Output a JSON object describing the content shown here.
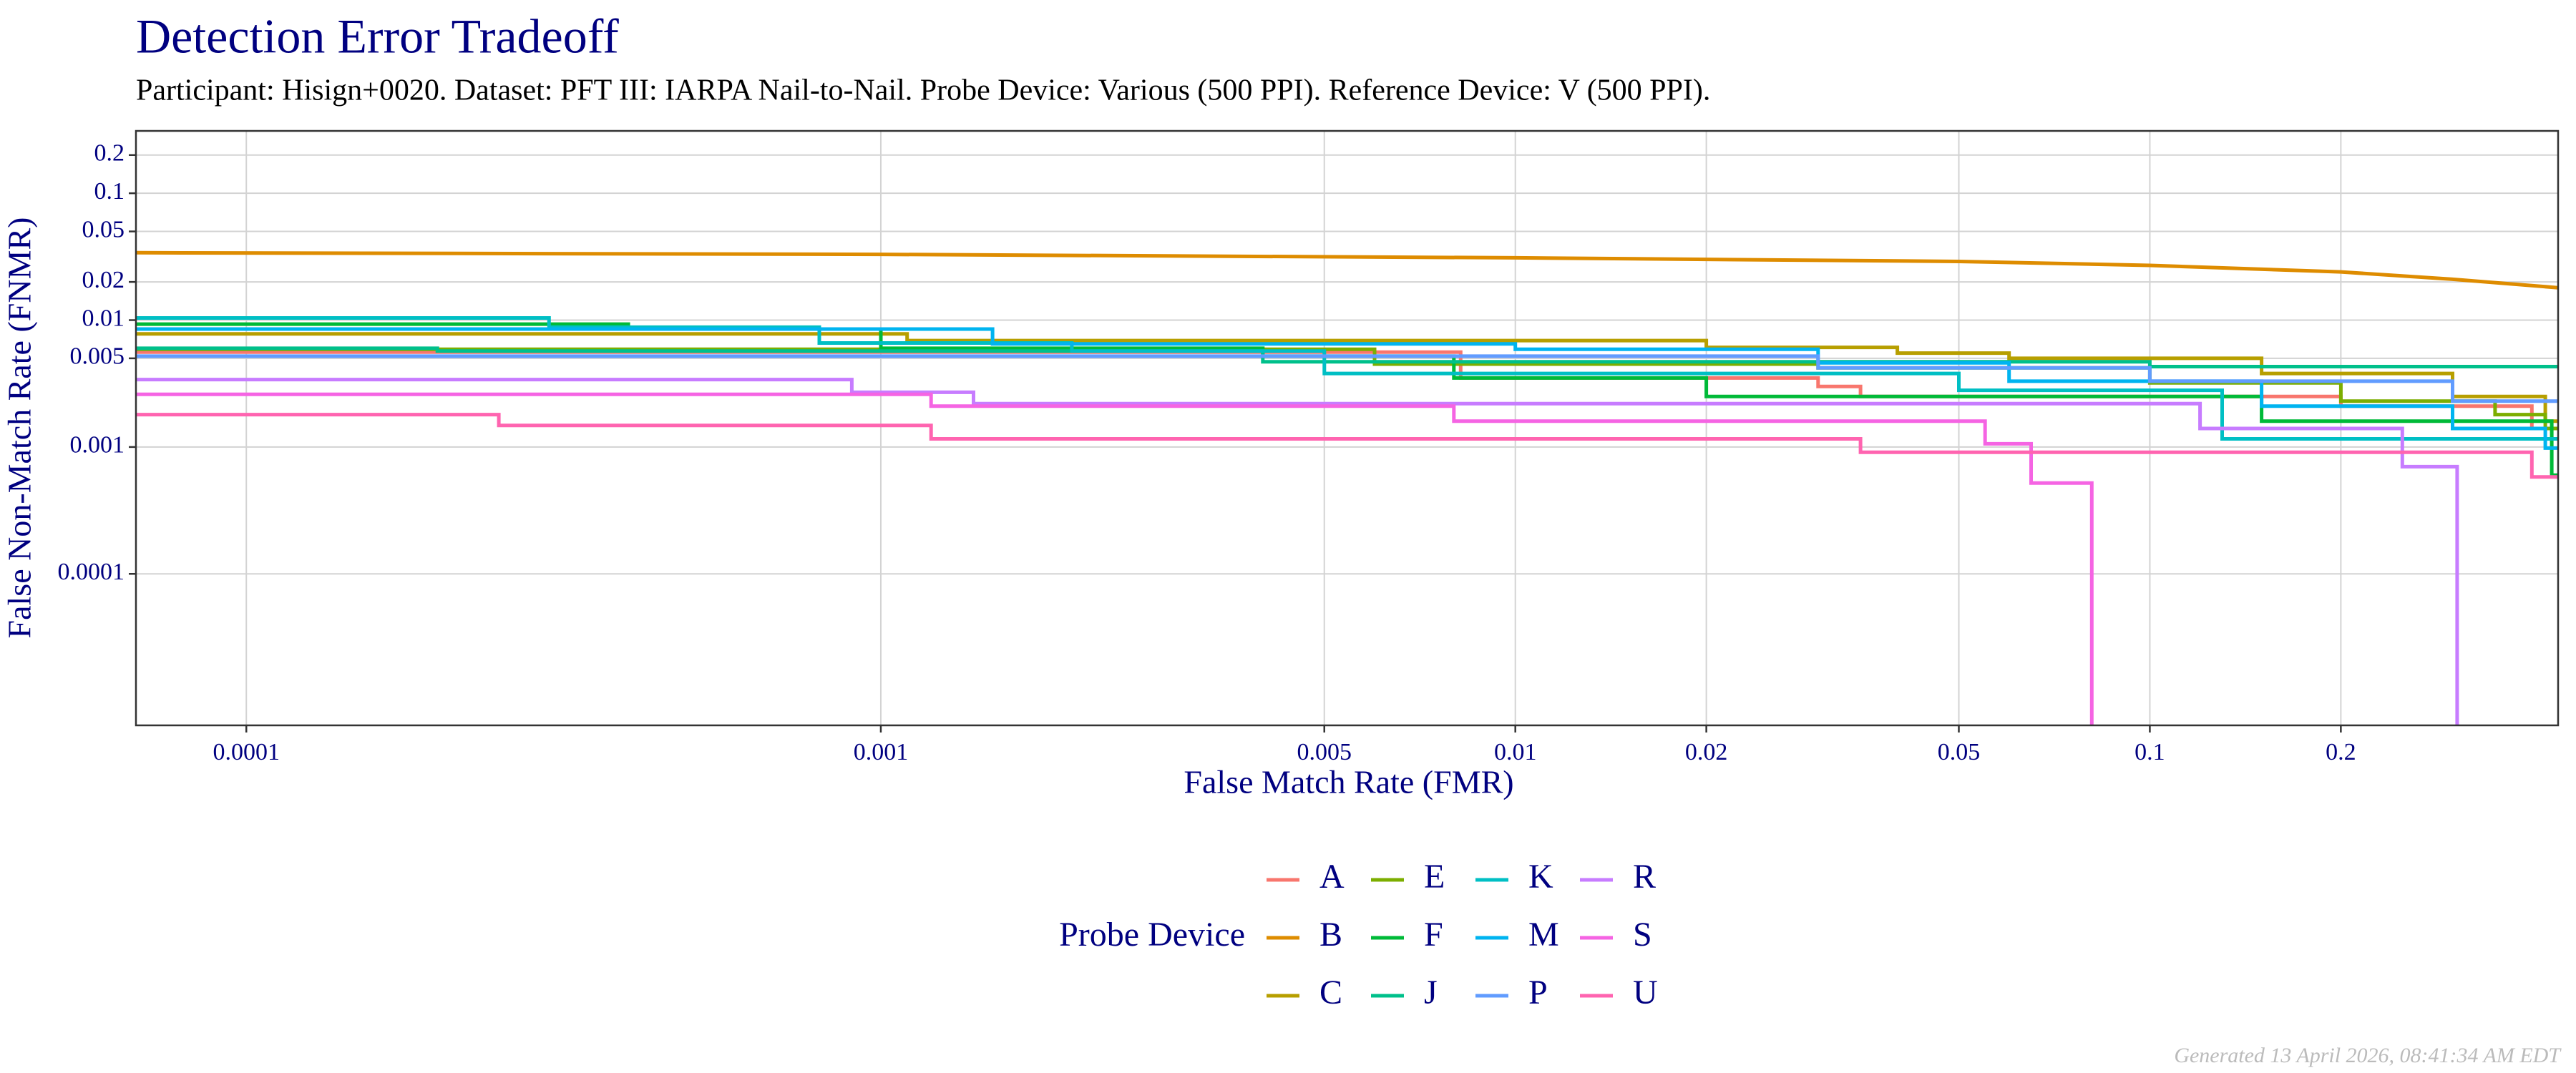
{
  "chart_data": {
    "type": "line",
    "title": "Detection Error Tradeoff",
    "subtitle": "Participant: Hisign+0020. Dataset: PFT III: IARPA Nail-to-Nail. Probe Device: Various (500 PPI). Reference Device: V (500 PPI).",
    "x_label": "False Match Rate (FMR)",
    "y_label": "False Non-Match Rate (FNMR)",
    "legend_title": "Probe Device",
    "caption": "Generated 13 April 2026, 08:41:34 AM EDT",
    "x_scale": "log",
    "y_scale": "log",
    "grid": true,
    "xlim": [
      6.7e-05,
      0.44
    ],
    "ylim": [
      6.4e-06,
      0.31
    ],
    "xticks": [
      0.0001,
      0.001,
      0.005,
      0.01,
      0.02,
      0.05,
      0.1,
      0.2
    ],
    "yticks": [
      0.0001,
      0.001,
      0.005,
      0.01,
      0.02,
      0.05,
      0.1,
      0.2
    ],
    "series": [
      {
        "name": "A",
        "color": "#F8766D",
        "x": [
          6.7e-05,
          0.0082,
          0.0082,
          0.03,
          0.03,
          0.035,
          0.035,
          0.2,
          0.2,
          0.4,
          0.4,
          0.44
        ],
        "y": [
          0.0056,
          0.0056,
          0.0035,
          0.0035,
          0.003,
          0.003,
          0.0025,
          0.0025,
          0.0021,
          0.0021,
          0.0014,
          0.0014
        ]
      },
      {
        "name": "B",
        "color": "#DE8C00",
        "x": [
          6.7e-05,
          0.001,
          0.01,
          0.05,
          0.1,
          0.2,
          0.3,
          0.44
        ],
        "y": [
          0.034,
          0.033,
          0.031,
          0.029,
          0.027,
          0.024,
          0.021,
          0.018
        ]
      },
      {
        "name": "C",
        "color": "#B79F00",
        "x": [
          6.7e-05,
          0.0011,
          0.0011,
          0.02,
          0.02,
          0.04,
          0.04,
          0.06,
          0.06,
          0.15,
          0.15,
          0.3,
          0.3,
          0.42,
          0.42,
          0.44
        ],
        "y": [
          0.0078,
          0.0078,
          0.0069,
          0.0069,
          0.0061,
          0.0061,
          0.0055,
          0.0055,
          0.005,
          0.005,
          0.0038,
          0.0038,
          0.0025,
          0.0025,
          0.0016,
          0.0016
        ]
      },
      {
        "name": "E",
        "color": "#7CAE00",
        "x": [
          6.7e-05,
          0.006,
          0.006,
          0.03,
          0.03,
          0.1,
          0.1,
          0.2,
          0.2,
          0.35,
          0.35,
          0.42,
          0.42,
          0.44
        ],
        "y": [
          0.0059,
          0.0059,
          0.0045,
          0.0045,
          0.0042,
          0.0042,
          0.0032,
          0.0032,
          0.0023,
          0.0023,
          0.0018,
          0.0018,
          0.0014,
          0.0014
        ]
      },
      {
        "name": "F",
        "color": "#00BA38",
        "x": [
          6.7e-05,
          0.0004,
          0.0004,
          0.001,
          0.001,
          0.004,
          0.004,
          0.008,
          0.008,
          0.02,
          0.02,
          0.15,
          0.15,
          0.43,
          0.43,
          0.44
        ],
        "y": [
          0.0093,
          0.0093,
          0.0085,
          0.0085,
          0.006,
          0.006,
          0.0052,
          0.0052,
          0.0035,
          0.0035,
          0.0025,
          0.0025,
          0.0016,
          0.0016,
          0.0006,
          0.0006
        ]
      },
      {
        "name": "J",
        "color": "#00C08B",
        "x": [
          6.7e-05,
          0.0002,
          0.0002,
          0.004,
          0.004,
          0.1,
          0.1,
          0.44
        ],
        "y": [
          0.006,
          0.006,
          0.0057,
          0.0057,
          0.0047,
          0.0047,
          0.0043,
          0.0043
        ]
      },
      {
        "name": "K",
        "color": "#00BFC4",
        "x": [
          6.7e-05,
          0.0003,
          0.0003,
          0.0008,
          0.0008,
          0.002,
          0.002,
          0.005,
          0.005,
          0.05,
          0.05,
          0.13,
          0.13,
          0.44
        ],
        "y": [
          0.0104,
          0.0104,
          0.0088,
          0.0088,
          0.0066,
          0.0066,
          0.0057,
          0.0057,
          0.0038,
          0.0038,
          0.0028,
          0.0028,
          0.00116,
          0.00116
        ]
      },
      {
        "name": "M",
        "color": "#00B4F0",
        "x": [
          6.7e-05,
          0.0015,
          0.0015,
          0.01,
          0.01,
          0.03,
          0.03,
          0.06,
          0.06,
          0.15,
          0.15,
          0.3,
          0.3,
          0.42,
          0.42,
          0.44
        ],
        "y": [
          0.0085,
          0.0085,
          0.0065,
          0.0065,
          0.0059,
          0.0059,
          0.0046,
          0.0046,
          0.0033,
          0.0033,
          0.0021,
          0.0021,
          0.0014,
          0.0014,
          0.00098,
          0.00098
        ]
      },
      {
        "name": "P",
        "color": "#619CFF",
        "x": [
          6.7e-05,
          0.03,
          0.03,
          0.1,
          0.1,
          0.3,
          0.3,
          0.44
        ],
        "y": [
          0.0052,
          0.0052,
          0.0042,
          0.0042,
          0.0033,
          0.0033,
          0.0023,
          0.0023
        ]
      },
      {
        "name": "R",
        "color": "#C77CFF",
        "x": [
          6.7e-05,
          0.0009,
          0.0009,
          0.0014,
          0.0014,
          0.12,
          0.12,
          0.25,
          0.25,
          0.305,
          0.305
        ],
        "y": [
          0.0034,
          0.0034,
          0.0027,
          0.0027,
          0.0022,
          0.0022,
          0.0014,
          0.0014,
          0.0007,
          0.0007,
          6.4e-06
        ]
      },
      {
        "name": "S",
        "color": "#F564E3",
        "x": [
          6.7e-05,
          0.0012,
          0.0012,
          0.008,
          0.008,
          0.055,
          0.055,
          0.065,
          0.065,
          0.081,
          0.081
        ],
        "y": [
          0.0026,
          0.0026,
          0.0021,
          0.0021,
          0.0016,
          0.0016,
          0.00106,
          0.00106,
          0.00052,
          0.00052,
          6.4e-06
        ]
      },
      {
        "name": "U",
        "color": "#FF64B0",
        "x": [
          6.7e-05,
          0.00025,
          0.00025,
          0.0012,
          0.0012,
          0.035,
          0.035,
          0.4,
          0.4,
          0.44
        ],
        "y": [
          0.0018,
          0.0018,
          0.00148,
          0.00148,
          0.00116,
          0.00116,
          0.00091,
          0.00091,
          0.00058,
          0.00058
        ]
      }
    ]
  }
}
